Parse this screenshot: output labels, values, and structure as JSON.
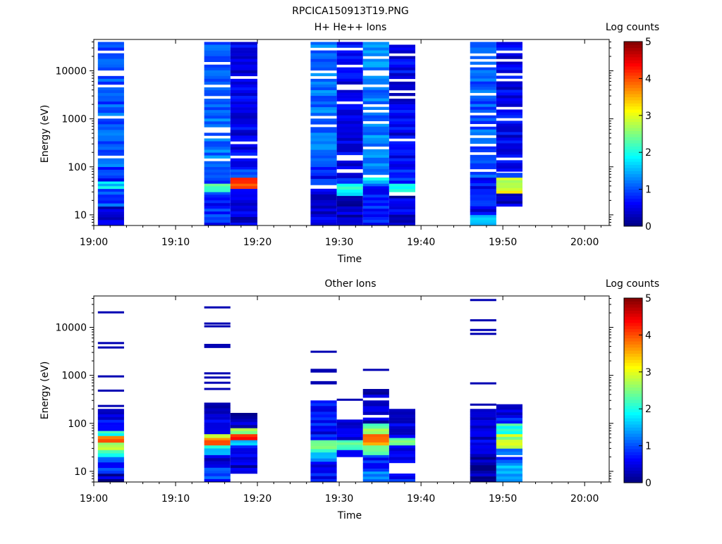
{
  "page_title": "RPCICA150913T19.PNG",
  "colormap": [
    "#00007f",
    "#0000ff",
    "#007fff",
    "#00ffff",
    "#7fff7f",
    "#ffff00",
    "#ff7f00",
    "#ff0000",
    "#7f0000"
  ],
  "chart_data": [
    {
      "type": "heatmap",
      "title": "H+ He++ Ions",
      "xlabel": "Time",
      "ylabel": "Energy (eV)",
      "x_ticks": [
        "19:00",
        "19:10",
        "19:20",
        "19:30",
        "19:40",
        "19:50",
        "20:00"
      ],
      "xlim": [
        "19:00",
        "20:03"
      ],
      "y_scale": "log",
      "y_ticks": [
        "10",
        "100",
        "1000",
        "10000"
      ],
      "ylim": [
        6,
        45000
      ],
      "colorbar": {
        "label": "Log counts",
        "ticks": [
          "0",
          "1",
          "2",
          "3",
          "4",
          "5"
        ],
        "range": [
          0,
          5
        ]
      },
      "columns": [
        {
          "t_start": "19:00.5",
          "t_end": "19:03.7",
          "e_top": 40000,
          "e_bottom": 6,
          "segments": [
            {
              "e_min": 6,
              "e_max": 15,
              "v": 0.4
            },
            {
              "e_min": 15,
              "e_max": 35,
              "v": 0.9
            },
            {
              "e_min": 35,
              "e_max": 50,
              "v": 1.7
            },
            {
              "e_min": 50,
              "e_max": 100,
              "v": 0.8
            },
            {
              "e_min": 100,
              "e_max": 40000,
              "v": 1.1
            }
          ]
        },
        {
          "t_start": "19:13.5",
          "t_end": "19:16.7",
          "e_top": 40000,
          "e_bottom": 6,
          "segments": [
            {
              "e_min": 6,
              "e_max": 30,
              "v": 0.8
            },
            {
              "e_min": 30,
              "e_max": 45,
              "v": 2.1
            },
            {
              "e_min": 45,
              "e_max": 100,
              "v": 0.9
            },
            {
              "e_min": 100,
              "e_max": 40000,
              "v": 1.2
            }
          ]
        },
        {
          "t_start": "19:16.7",
          "t_end": "19:20.0",
          "e_top": 40000,
          "e_bottom": 6,
          "segments": [
            {
              "e_min": 6,
              "e_max": 35,
              "v": 0.4
            },
            {
              "e_min": 35,
              "e_max": 45,
              "v": 3.8
            },
            {
              "e_min": 45,
              "e_max": 60,
              "v": 4.0
            },
            {
              "e_min": 60,
              "e_max": 100,
              "v": 0.9
            },
            {
              "e_min": 100,
              "e_max": 40000,
              "v": 0.6
            }
          ]
        },
        {
          "t_start": "19:26.5",
          "t_end": "19:29.7",
          "e_top": 40000,
          "e_bottom": 6,
          "segments": [
            {
              "e_min": 6,
              "e_max": 35,
              "v": 0.4
            },
            {
              "e_min": 42,
              "e_max": 100,
              "v": 0.7
            },
            {
              "e_min": 100,
              "e_max": 40000,
              "v": 1.2
            }
          ]
        },
        {
          "t_start": "19:29.7",
          "t_end": "19:32.9",
          "e_top": 40000,
          "e_bottom": 6,
          "segments": [
            {
              "e_min": 6,
              "e_max": 25,
              "v": 0.3
            },
            {
              "e_min": 25,
              "e_max": 45,
              "v": 2.0
            },
            {
              "e_min": 45,
              "e_max": 75,
              "v": 0.6
            },
            {
              "e_min": 90,
              "e_max": 40000,
              "v": 0.6
            }
          ]
        },
        {
          "t_start": "19:32.9",
          "t_end": "19:36.1",
          "e_top": 40000,
          "e_bottom": 6,
          "segments": [
            {
              "e_min": 6,
              "e_max": 45,
              "v": 0.8
            },
            {
              "e_min": 45,
              "e_max": 60,
              "v": 1.8
            },
            {
              "e_min": 60,
              "e_max": 40000,
              "v": 1.3
            }
          ]
        },
        {
          "t_start": "19:36.1",
          "t_end": "19:39.3",
          "e_top": 35000,
          "e_bottom": 6,
          "segments": [
            {
              "e_min": 6,
              "e_max": 25,
              "v": 0.4
            },
            {
              "e_min": 30,
              "e_max": 45,
              "v": 2.2
            },
            {
              "e_min": 45,
              "e_max": 100,
              "v": 0.8
            },
            {
              "e_min": 100,
              "e_max": 35000,
              "v": 0.6
            }
          ]
        },
        {
          "t_start": "19:46.0",
          "t_end": "19:49.2",
          "e_top": 40000,
          "e_bottom": 6,
          "segments": [
            {
              "e_min": 6,
              "e_max": 10,
              "v": 1.4
            },
            {
              "e_min": 10,
              "e_max": 60,
              "v": 0.6
            },
            {
              "e_min": 60,
              "e_max": 40000,
              "v": 1.1
            }
          ]
        },
        {
          "t_start": "19:49.2",
          "t_end": "19:52.4",
          "e_top": 40000,
          "e_bottom": 15,
          "segments": [
            {
              "e_min": 15,
              "e_max": 28,
              "v": 0.5
            },
            {
              "e_min": 28,
              "e_max": 60,
              "v": 3.0
            },
            {
              "e_min": 60,
              "e_max": 75,
              "v": 1.3
            },
            {
              "e_min": 80,
              "e_max": 40000,
              "v": 0.6
            }
          ]
        }
      ]
    },
    {
      "type": "heatmap",
      "title": "Other Ions",
      "xlabel": "Time",
      "ylabel": "Energy (eV)",
      "x_ticks": [
        "19:00",
        "19:10",
        "19:20",
        "19:30",
        "19:40",
        "19:50",
        "20:00"
      ],
      "xlim": [
        "19:00",
        "20:03"
      ],
      "y_scale": "log",
      "y_ticks": [
        "10",
        "100",
        "1000",
        "10000"
      ],
      "ylim": [
        6,
        45000
      ],
      "colorbar": {
        "label": "Log counts",
        "ticks": [
          "0",
          "1",
          "2",
          "3",
          "4",
          "5"
        ],
        "range": [
          0,
          5
        ]
      },
      "columns": [
        {
          "t_start": "19:00.5",
          "t_end": "19:03.7",
          "e_top": 200,
          "e_bottom": 6,
          "lines": [
            20500,
            4700,
            3800,
            950,
            480,
            230
          ],
          "segments": [
            {
              "e_min": 6,
              "e_max": 9,
              "v": 0.2
            },
            {
              "e_min": 9,
              "e_max": 20,
              "v": 0.9
            },
            {
              "e_min": 20,
              "e_max": 28,
              "v": 2.1
            },
            {
              "e_min": 28,
              "e_max": 40,
              "v": 2.6
            },
            {
              "e_min": 40,
              "e_max": 55,
              "v": 4.0
            },
            {
              "e_min": 55,
              "e_max": 70,
              "v": 2.0
            },
            {
              "e_min": 70,
              "e_max": 200,
              "v": 0.6
            }
          ]
        },
        {
          "t_start": "19:13.5",
          "t_end": "19:16.7",
          "e_top": 270,
          "e_bottom": 6,
          "lines": [
            26000,
            12000,
            10500,
            4300,
            3900,
            1100,
            900,
            700,
            520
          ],
          "segments": [
            {
              "e_min": 6,
              "e_max": 12,
              "v": 0.9
            },
            {
              "e_min": 12,
              "e_max": 22,
              "v": 0.5
            },
            {
              "e_min": 22,
              "e_max": 35,
              "v": 1.8
            },
            {
              "e_min": 35,
              "e_max": 50,
              "v": 3.9
            },
            {
              "e_min": 50,
              "e_max": 60,
              "v": 2.6
            },
            {
              "e_min": 60,
              "e_max": 270,
              "v": 0.4
            }
          ]
        },
        {
          "t_start": "19:16.7",
          "t_end": "19:20.0",
          "e_top": 165,
          "e_bottom": 9,
          "segments": [
            {
              "e_min": 9,
              "e_max": 20,
              "v": 0.4
            },
            {
              "e_min": 20,
              "e_max": 35,
              "v": 0.8
            },
            {
              "e_min": 35,
              "e_max": 45,
              "v": 1.6
            },
            {
              "e_min": 45,
              "e_max": 60,
              "v": 4.2
            },
            {
              "e_min": 60,
              "e_max": 80,
              "v": 2.8
            },
            {
              "e_min": 80,
              "e_max": 165,
              "v": 0.4
            }
          ]
        },
        {
          "t_start": "19:26.5",
          "t_end": "19:29.7",
          "e_top": 300,
          "e_bottom": 6,
          "lines": [
            3100,
            1300,
            1200,
            720,
            680
          ],
          "segments": [
            {
              "e_min": 6,
              "e_max": 16,
              "v": 0.7
            },
            {
              "e_min": 16,
              "e_max": 25,
              "v": 1.3
            },
            {
              "e_min": 25,
              "e_max": 45,
              "v": 2.2
            },
            {
              "e_min": 45,
              "e_max": 300,
              "v": 0.6
            }
          ]
        },
        {
          "t_start": "19:29.7",
          "t_end": "19:32.9",
          "e_top": 120,
          "e_bottom": 20,
          "lines": [
            310
          ],
          "segments": [
            {
              "e_min": 20,
              "e_max": 28,
              "v": 0.4
            },
            {
              "e_min": 28,
              "e_max": 45,
              "v": 2.2
            },
            {
              "e_min": 45,
              "e_max": 120,
              "v": 0.5
            }
          ]
        },
        {
          "t_start": "19:32.9",
          "t_end": "19:36.1",
          "e_top": 520,
          "e_bottom": 6,
          "lines": [
            1300
          ],
          "segments": [
            {
              "e_min": 6,
              "e_max": 10,
              "v": 1.3
            },
            {
              "e_min": 10,
              "e_max": 22,
              "v": 0.7
            },
            {
              "e_min": 22,
              "e_max": 35,
              "v": 2.3
            },
            {
              "e_min": 35,
              "e_max": 60,
              "v": 3.8
            },
            {
              "e_min": 60,
              "e_max": 100,
              "v": 2.4
            },
            {
              "e_min": 100,
              "e_max": 520,
              "v": 0.4
            }
          ]
        },
        {
          "t_start": "19:36.1",
          "t_end": "19:39.3",
          "e_top": 200,
          "e_bottom": 6,
          "segments": [
            {
              "e_min": 6,
              "e_max": 9,
              "v": 0.6
            },
            {
              "e_min": 15,
              "e_max": 35,
              "v": 0.4
            },
            {
              "e_min": 35,
              "e_max": 50,
              "v": 2.2
            },
            {
              "e_min": 50,
              "e_max": 200,
              "v": 0.5
            }
          ]
        },
        {
          "t_start": "19:46.0",
          "t_end": "19:49.2",
          "e_top": 200,
          "e_bottom": 6,
          "lines": [
            37000,
            14000,
            8800,
            7300,
            680,
            245
          ],
          "segments": [
            {
              "e_min": 6,
              "e_max": 20,
              "v": 0.2
            },
            {
              "e_min": 20,
              "e_max": 60,
              "v": 0.5
            },
            {
              "e_min": 60,
              "e_max": 200,
              "v": 0.4
            }
          ]
        },
        {
          "t_start": "19:49.2",
          "t_end": "19:52.4",
          "e_top": 250,
          "e_bottom": 6,
          "segments": [
            {
              "e_min": 6,
              "e_max": 15,
              "v": 1.5
            },
            {
              "e_min": 15,
              "e_max": 20,
              "v": 0.9
            },
            {
              "e_min": 22,
              "e_max": 30,
              "v": 1.0
            },
            {
              "e_min": 30,
              "e_max": 60,
              "v": 2.7
            },
            {
              "e_min": 60,
              "e_max": 100,
              "v": 2.0
            },
            {
              "e_min": 100,
              "e_max": 250,
              "v": 0.6
            }
          ]
        }
      ]
    }
  ]
}
